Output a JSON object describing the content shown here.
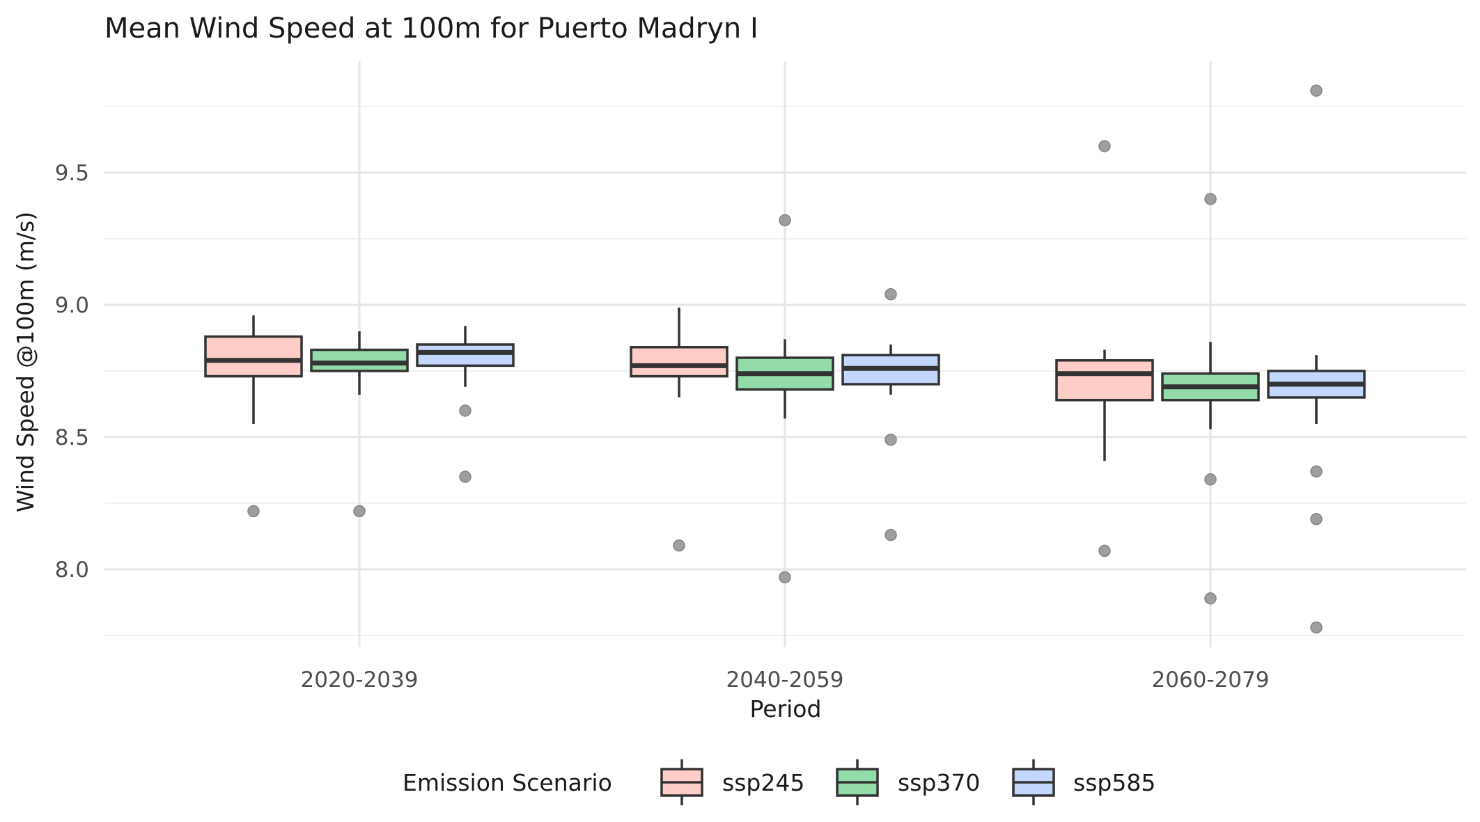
{
  "chart_data": {
    "type": "boxplot",
    "title": "Mean Wind Speed at 100m for Puerto Madryn I",
    "xlabel": "Period",
    "ylabel": "Wind Speed @100m (m/s)",
    "ylim": [
      7.75,
      9.9
    ],
    "yticks": [
      "8.0",
      "8.5",
      "9.0",
      "9.5"
    ],
    "categories": [
      "2020-2039",
      "2040-2059",
      "2060-2079"
    ],
    "grid": true,
    "legend": {
      "title": "Emission Scenario",
      "position": "bottom"
    },
    "series": [
      {
        "name": "ssp245",
        "color": "#ffcdc8",
        "boxes": [
          {
            "whisker_low": 8.55,
            "q1": 8.73,
            "median": 8.79,
            "q3": 8.88,
            "whisker_high": 8.96,
            "outliers": [
              8.22
            ]
          },
          {
            "whisker_low": 8.65,
            "q1": 8.73,
            "median": 8.77,
            "q3": 8.84,
            "whisker_high": 8.99,
            "outliers": [
              8.09
            ]
          },
          {
            "whisker_low": 8.41,
            "q1": 8.64,
            "median": 8.74,
            "q3": 8.79,
            "whisker_high": 8.83,
            "outliers": [
              9.6,
              8.07
            ]
          }
        ]
      },
      {
        "name": "ssp370",
        "color": "#93dba8",
        "boxes": [
          {
            "whisker_low": 8.66,
            "q1": 8.75,
            "median": 8.78,
            "q3": 8.83,
            "whisker_high": 8.9,
            "outliers": [
              8.22
            ]
          },
          {
            "whisker_low": 8.57,
            "q1": 8.68,
            "median": 8.74,
            "q3": 8.8,
            "whisker_high": 8.87,
            "outliers": [
              9.32,
              7.97
            ]
          },
          {
            "whisker_low": 8.53,
            "q1": 8.64,
            "median": 8.69,
            "q3": 8.74,
            "whisker_high": 8.86,
            "outliers": [
              9.4,
              8.34,
              7.89
            ]
          }
        ]
      },
      {
        "name": "ssp585",
        "color": "#c3d6fb",
        "boxes": [
          {
            "whisker_low": 8.69,
            "q1": 8.77,
            "median": 8.82,
            "q3": 8.85,
            "whisker_high": 8.92,
            "outliers": [
              8.6,
              8.35
            ]
          },
          {
            "whisker_low": 8.66,
            "q1": 8.7,
            "median": 8.76,
            "q3": 8.81,
            "whisker_high": 8.85,
            "outliers": [
              9.04,
              8.49,
              8.13
            ]
          },
          {
            "whisker_low": 8.55,
            "q1": 8.65,
            "median": 8.7,
            "q3": 8.75,
            "whisker_high": 8.81,
            "outliers": [
              9.81,
              8.37,
              8.19,
              7.78
            ]
          }
        ]
      }
    ]
  }
}
